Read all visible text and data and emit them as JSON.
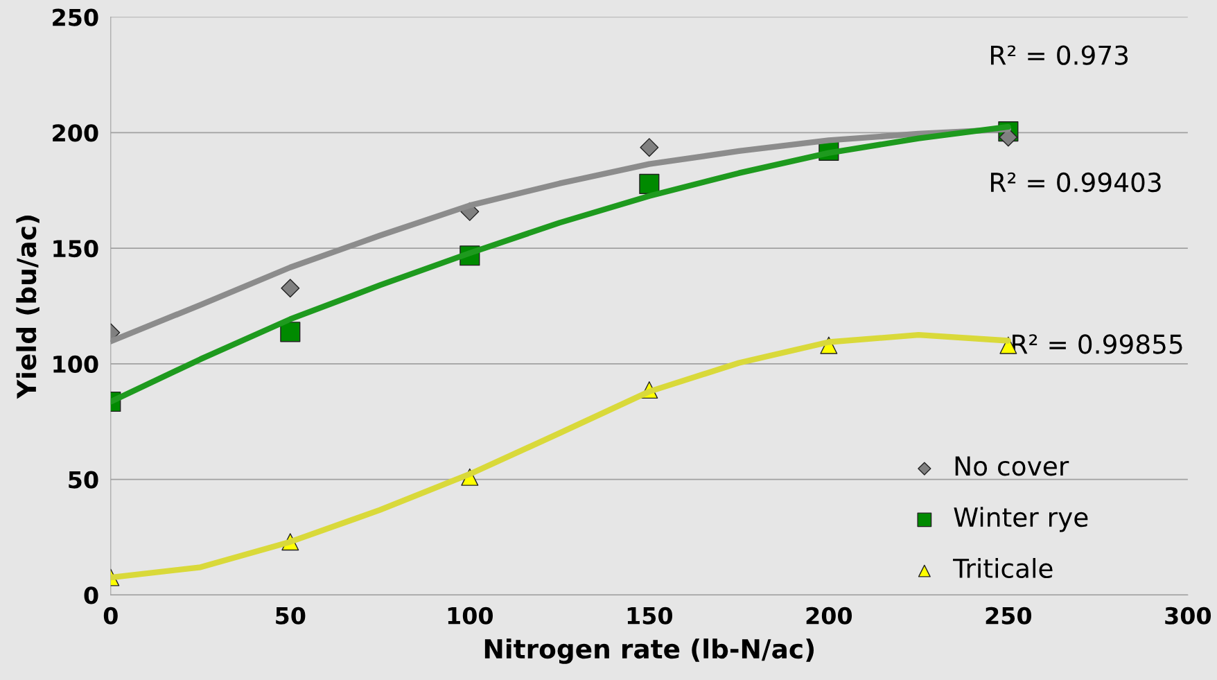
{
  "chart_data": {
    "type": "scatter",
    "xlabel": "Nitrogen rate (lb-N/ac)",
    "ylabel": "Yield (bu/ac)",
    "xlim": [
      0,
      300
    ],
    "xticks": [
      0,
      50,
      100,
      150,
      200,
      250,
      300
    ],
    "ylim": [
      0,
      250
    ],
    "yticks": [
      0,
      50,
      100,
      150,
      200,
      250
    ],
    "grid": "y",
    "legend": "bottom right",
    "series": [
      {
        "type": "line",
        "color": "#8c8c8c",
        "x": [
          0,
          25,
          50,
          75,
          100,
          125,
          150,
          175,
          200,
          225,
          250
        ],
        "values": [
          109.7,
          125.5,
          141.7,
          155.5,
          168.5,
          178,
          186.4,
          192,
          196.7,
          199.5,
          201.5
        ],
        "marker": "none"
      },
      {
        "type": "line",
        "color": "#1e9a1e",
        "x": [
          0,
          25,
          50,
          75,
          100,
          125,
          150,
          175,
          200,
          225,
          250
        ],
        "values": [
          83.6,
          102,
          119.3,
          134,
          147.9,
          161,
          172.6,
          182.5,
          191.2,
          197.5,
          202.5
        ],
        "marker": "none"
      },
      {
        "type": "line",
        "color": "#d9d93a",
        "x": [
          0,
          25,
          50,
          75,
          100,
          125,
          150,
          175,
          200,
          225,
          250
        ],
        "values": [
          7.6,
          12,
          23,
          36.8,
          52.3,
          70,
          88,
          100.4,
          109.4,
          112.5,
          110
        ],
        "marker": "none"
      },
      {
        "name": "No cover",
        "color": "#808080",
        "x": [
          0,
          50,
          100,
          150,
          200,
          250
        ],
        "values": [
          113.5,
          132.7,
          165.8,
          193.6,
          null,
          198
        ],
        "marker": "diamond"
      },
      {
        "name": "Winter rye",
        "color": "#008a00",
        "x": [
          0,
          50,
          100,
          150,
          200,
          250
        ],
        "values": [
          83.6,
          113.8,
          146.8,
          177.8,
          192.2,
          200.5
        ],
        "marker": "square"
      },
      {
        "name": "Triticale",
        "color": "#ffff00",
        "x": [
          0,
          50,
          100,
          150,
          200,
          250
        ],
        "values": [
          7.6,
          23,
          51,
          88.7,
          108,
          108
        ],
        "marker": "triangle"
      }
    ],
    "annotations": [
      "R² = 0.973",
      "R² = 0.99403",
      "R² = 0.99855"
    ]
  }
}
